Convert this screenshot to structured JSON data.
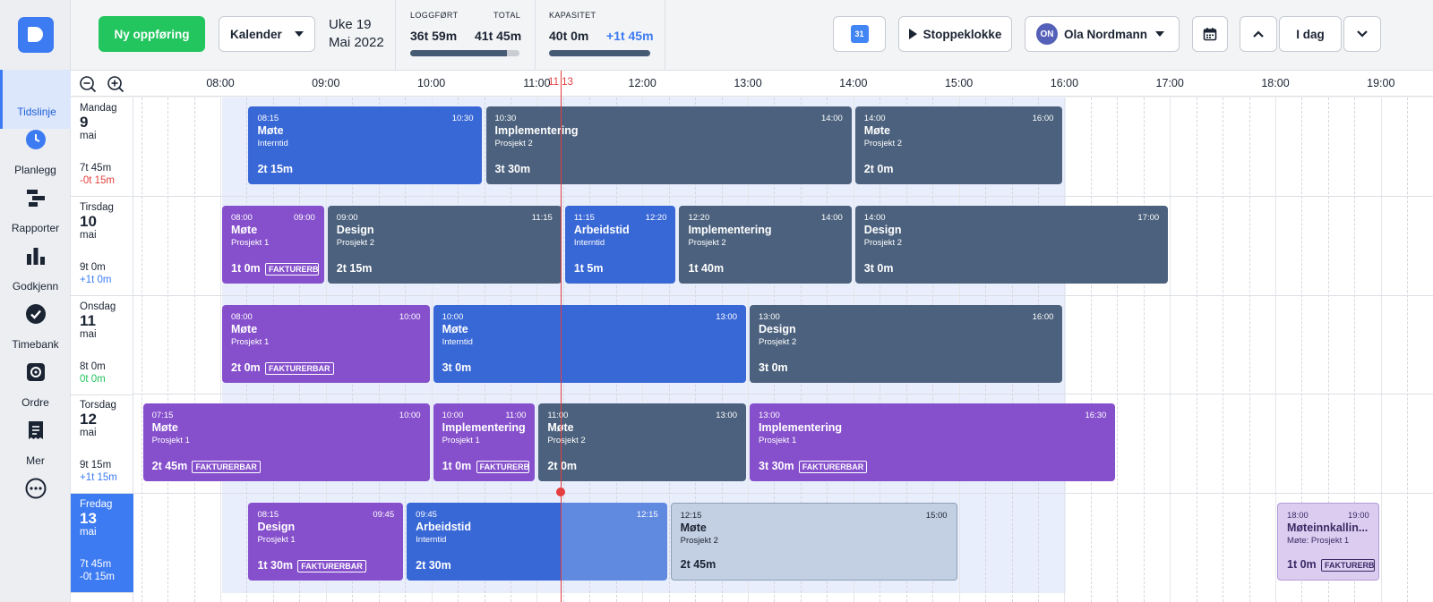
{
  "nav": {
    "items": [
      {
        "label": "Tidslinje",
        "icon": "clock-icon",
        "active": true
      },
      {
        "label": "Planlegg",
        "icon": "planner-icon"
      },
      {
        "label": "Rapporter",
        "icon": "bar-chart-icon"
      },
      {
        "label": "Godkjenn",
        "icon": "check-circle-icon"
      },
      {
        "label": "Timebank",
        "icon": "vault-icon"
      },
      {
        "label": "Ordre",
        "icon": "receipt-icon"
      },
      {
        "label": "Mer",
        "icon": "more-icon"
      }
    ]
  },
  "toolbar": {
    "new_entry": "Ny oppføring",
    "view": "Kalender",
    "week": "Uke 19",
    "month_year": "Mai 2022",
    "logged_label": "LOGGFØRT",
    "logged_value": "36t 59m",
    "total_label": "TOTAL",
    "total_value": "41t 45m",
    "logged_fraction": 0.885,
    "capacity_label": "KAPASITET",
    "capacity_value": "40t 0m",
    "capacity_diff": "+1t 45m",
    "capacity_fraction": 1.0,
    "gcal_label": "31",
    "stopwatch": "Stoppeklokke",
    "user_initials": "ON",
    "user_name": "Ola Nordmann",
    "today": "I dag"
  },
  "timeline": {
    "hours": [
      "08:00",
      "09:00",
      "10:00",
      "11:00",
      "12:00",
      "13:00",
      "14:00",
      "15:00",
      "16:00",
      "17:00",
      "18:00",
      "19:00"
    ],
    "now_label": "11 13"
  },
  "days": [
    {
      "name": "Mandag",
      "num": "9",
      "month": "mai",
      "hours": "7t 45m",
      "diff": "-0t 15m",
      "diff_kind": "neg",
      "events": [
        {
          "start": "08:15",
          "end": "10:30",
          "title": "Møte",
          "sub": "Interntid",
          "dur": "2t 15m",
          "color": "blue"
        },
        {
          "start": "10:30",
          "end": "14:00",
          "title": "Implementering",
          "sub": "Prosjekt 2",
          "dur": "3t 30m",
          "color": "grey"
        },
        {
          "start": "14:00",
          "end": "16:00",
          "title": "Møte",
          "sub": "Prosjekt 2",
          "dur": "2t 0m",
          "color": "grey"
        }
      ]
    },
    {
      "name": "Tirsdag",
      "num": "10",
      "month": "mai",
      "hours": "9t 0m",
      "diff": "+1t 0m",
      "diff_kind": "pos",
      "events": [
        {
          "start": "08:00",
          "end": "09:00",
          "title": "Møte",
          "sub": "Prosjekt 1",
          "dur": "1t 0m",
          "color": "purple",
          "badge": "FAKTURERB"
        },
        {
          "start": "09:00",
          "end": "11:15",
          "title": "Design",
          "sub": "Prosjekt 2",
          "dur": "2t 15m",
          "color": "grey"
        },
        {
          "start": "11:15",
          "end": "12:20",
          "title": "Arbeidstid",
          "sub": "Interntid",
          "dur": "1t 5m",
          "color": "blue"
        },
        {
          "start": "12:20",
          "end": "14:00",
          "title": "Implementering",
          "sub": "Prosjekt 2",
          "dur": "1t 40m",
          "color": "grey"
        },
        {
          "start": "14:00",
          "end": "17:00",
          "title": "Design",
          "sub": "Prosjekt 2",
          "dur": "3t 0m",
          "color": "grey"
        }
      ]
    },
    {
      "name": "Onsdag",
      "num": "11",
      "month": "mai",
      "hours": "8t 0m",
      "diff": "0t 0m",
      "diff_kind": "zero",
      "events": [
        {
          "start": "08:00",
          "end": "10:00",
          "title": "Møte",
          "sub": "Prosjekt 1",
          "dur": "2t 0m",
          "color": "purple",
          "badge": "FAKTURERBAR"
        },
        {
          "start": "10:00",
          "end": "13:00",
          "title": "Møte",
          "sub": "Interntid",
          "dur": "3t 0m",
          "color": "blue"
        },
        {
          "start": "13:00",
          "end": "16:00",
          "title": "Design",
          "sub": "Prosjekt 2",
          "dur": "3t 0m",
          "color": "grey"
        }
      ]
    },
    {
      "name": "Torsdag",
      "num": "12",
      "month": "mai",
      "hours": "9t 15m",
      "diff": "+1t 15m",
      "diff_kind": "pos",
      "events": [
        {
          "start": "07:15",
          "end": "10:00",
          "title": "Møte",
          "sub": "Prosjekt 1",
          "dur": "2t 45m",
          "color": "purple",
          "badge": "FAKTURERBAR"
        },
        {
          "start": "10:00",
          "end": "11:00",
          "title": "Implementering",
          "sub": "Prosjekt 1",
          "dur": "1t 0m",
          "color": "purple",
          "badge": "FAKTURERB"
        },
        {
          "start": "11:00",
          "end": "13:00",
          "title": "Møte",
          "sub": "Prosjekt 2",
          "dur": "2t 0m",
          "color": "grey"
        },
        {
          "start": "13:00",
          "end": "16:30",
          "title": "Implementering",
          "sub": "Prosjekt 1",
          "dur": "3t 30m",
          "color": "purple",
          "badge": "FAKTURERBAR"
        }
      ]
    },
    {
      "name": "Fredag",
      "num": "13",
      "month": "mai",
      "hours": "7t 45m",
      "diff": "-0t 15m",
      "diff_kind": "neg",
      "today": true,
      "events": [
        {
          "start": "08:15",
          "end": "09:45",
          "title": "Design",
          "sub": "Prosjekt 1",
          "dur": "1t 30m",
          "color": "purple",
          "badge": "FAKTURERBAR"
        },
        {
          "start": "09:45",
          "end": "12:15",
          "title": "Arbeidstid",
          "sub": "Interntid",
          "dur": "2t 30m",
          "color": "blue-split"
        },
        {
          "start": "12:15",
          "end": "15:00",
          "title": "Møte",
          "sub": "Prosjekt 2",
          "dur": "2t 45m",
          "color": "grey-light"
        },
        {
          "start": "18:00",
          "end": "19:00",
          "title": "Møteinnkallin...",
          "sub": "Møte: Prosjekt 1",
          "dur": "1t 0m",
          "color": "purple-light",
          "badge": "FAKTURERB"
        }
      ]
    }
  ]
}
